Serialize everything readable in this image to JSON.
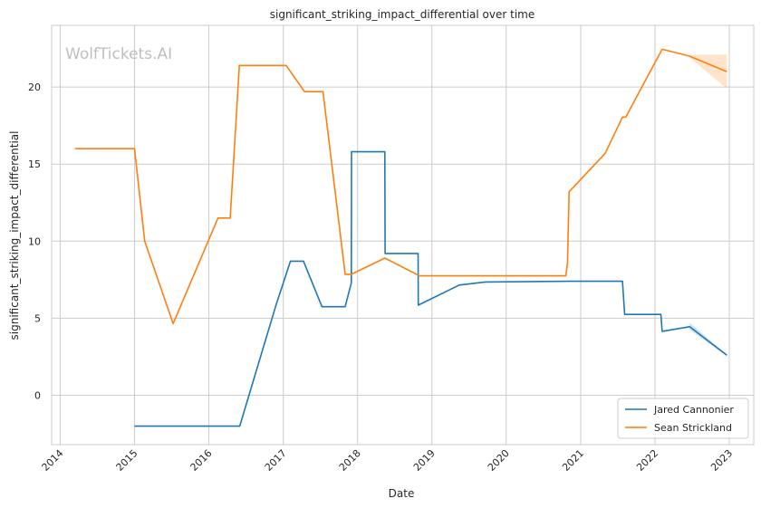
{
  "watermark": "WolfTickets.AI",
  "chart_data": {
    "type": "line",
    "title": "significant_striking_impact_differential over time",
    "xlabel": "Date",
    "ylabel": "significant_striking_impact_differential",
    "xlim": [
      "2013-11-20",
      "2023-05-01"
    ],
    "ylim": [
      -3.2,
      24.0
    ],
    "x_ticks": [
      "2014",
      "2015",
      "2016",
      "2017",
      "2018",
      "2019",
      "2020",
      "2021",
      "2022",
      "2023"
    ],
    "y_ticks": [
      0,
      5,
      10,
      15,
      20
    ],
    "grid": true,
    "legend_placement": "bottom-right",
    "series": [
      {
        "name": "Jared Cannonier",
        "color": "#1f77b4",
        "points": [
          [
            "2015-01-01",
            -2.0
          ],
          [
            "2016-06-01",
            -2.0
          ],
          [
            "2016-11-25",
            5.8
          ],
          [
            "2017-02-05",
            8.7
          ],
          [
            "2017-04-10",
            8.7
          ],
          [
            "2017-07-10",
            5.75
          ],
          [
            "2017-11-01",
            5.75
          ],
          [
            "2017-12-01",
            7.3
          ],
          [
            "2017-12-02",
            15.8
          ],
          [
            "2018-05-15",
            15.8
          ],
          [
            "2018-05-16",
            9.2
          ],
          [
            "2018-10-25",
            9.2
          ],
          [
            "2018-10-26",
            5.85
          ],
          [
            "2019-05-15",
            7.15
          ],
          [
            "2019-09-20",
            7.35
          ],
          [
            "2020-11-10",
            7.4
          ],
          [
            "2021-07-25",
            7.4
          ],
          [
            "2021-08-05",
            5.25
          ],
          [
            "2022-01-30",
            5.25
          ],
          [
            "2022-02-05",
            4.15
          ],
          [
            "2022-06-20",
            4.45
          ],
          [
            "2022-12-20",
            2.6
          ]
        ],
        "band": {
          "x": [
            "2022-06-20",
            "2022-12-20"
          ],
          "lower": [
            4.25,
            2.55
          ],
          "upper": [
            4.7,
            2.65
          ]
        }
      },
      {
        "name": "Sean Strickland",
        "color": "#ff7f0e",
        "points": [
          [
            "2014-03-15",
            16.0
          ],
          [
            "2015-01-01",
            16.0
          ],
          [
            "2015-02-20",
            10.0
          ],
          [
            "2015-07-10",
            4.65
          ],
          [
            "2016-02-15",
            11.5
          ],
          [
            "2016-04-15",
            11.5
          ],
          [
            "2016-05-30",
            21.4
          ],
          [
            "2017-01-15",
            21.4
          ],
          [
            "2017-04-15",
            19.7
          ],
          [
            "2017-07-15",
            19.7
          ],
          [
            "2017-11-01",
            7.85
          ],
          [
            "2017-12-01",
            7.85
          ],
          [
            "2018-05-15",
            8.9
          ],
          [
            "2018-11-01",
            7.75
          ],
          [
            "2020-10-20",
            7.75
          ],
          [
            "2020-10-28",
            8.6
          ],
          [
            "2020-11-05",
            13.2
          ],
          [
            "2021-05-01",
            15.7
          ],
          [
            "2021-07-25",
            18.05
          ],
          [
            "2021-08-10",
            18.05
          ],
          [
            "2022-02-05",
            22.45
          ],
          [
            "2022-06-20",
            22.0
          ],
          [
            "2022-12-20",
            21.0
          ]
        ],
        "band": {
          "x": [
            "2022-06-20",
            "2022-12-20"
          ],
          "lower": [
            21.9,
            19.9
          ],
          "upper": [
            22.1,
            22.1
          ]
        }
      }
    ]
  }
}
